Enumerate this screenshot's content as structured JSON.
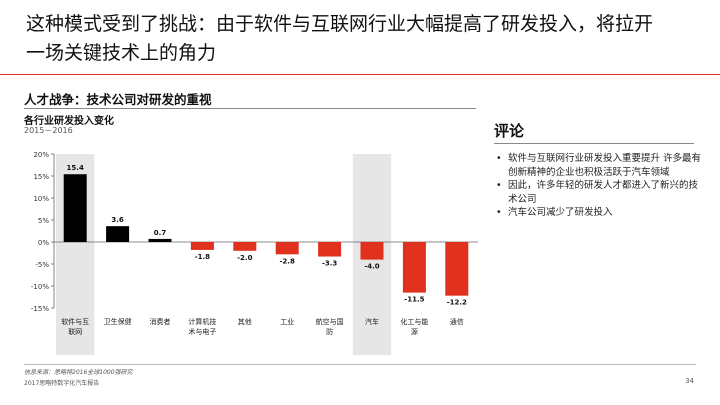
{
  "slide": {
    "title_line1": "这种模式受到了挑战：由于软件与互联网行业大幅提高了研发投入，将拉开",
    "title_line2": "一场关键技术上的角力",
    "section_title": "人才战争：技术公司对研发的重视",
    "chart_subtitle": "各行业研发投入变化",
    "chart_period": "2015－2016"
  },
  "comments": {
    "title": "评论",
    "bullets": [
      "软件与互联网行业研发投入重要提升   许多最有创新精神的企业也积极活跃于汽车领域",
      "因此，许多年轻的研发人才都进入了新兴的技术公司",
      "汽车公司减少了研发投入"
    ]
  },
  "footer": {
    "source": "信息来源：思略特2016全球1000强研究",
    "report": "2017思略特数字化汽车报告",
    "page": "34"
  },
  "colors": {
    "title_rule": "#e0301e",
    "positive_bar": "#000000",
    "negative_bar": "#e0301e",
    "highlight_band": "#e6e6e6"
  },
  "chart_data": {
    "type": "bar",
    "title": "各行业研发投入变化",
    "subtitle": "2015－2016",
    "categories": [
      "软件与互联网",
      "卫生保健",
      "消费者",
      "计算机技术与电子",
      "其他",
      "工业",
      "航空与国防",
      "汽车",
      "化工与能源",
      "通信"
    ],
    "values": [
      15.4,
      3.6,
      0.7,
      -1.8,
      -2.0,
      -2.8,
      -3.3,
      -4.0,
      -11.5,
      -12.2
    ],
    "value_labels": [
      "15.4",
      "3.6",
      "0.7",
      "-1.8",
      "-2.0",
      "-2.8",
      "-3.3",
      "-4.0",
      "-11.5",
      "-12.2"
    ],
    "highlighted_categories": [
      "软件与互联网",
      "汽车"
    ],
    "yticks": [
      "20%",
      "15%",
      "10%",
      "5%",
      "0%",
      "-5%",
      "-10%",
      "-15%"
    ],
    "ytick_values": [
      20,
      15,
      10,
      5,
      0,
      -5,
      -10,
      -15
    ],
    "ylim": [
      -15,
      20
    ],
    "grid": false,
    "legend": "none"
  }
}
